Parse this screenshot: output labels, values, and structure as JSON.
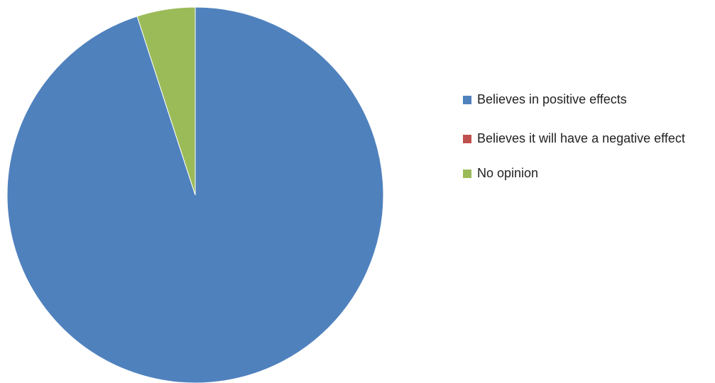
{
  "chart_data": {
    "type": "pie",
    "title": "",
    "slices": [
      {
        "label": "Believes in positive effects",
        "value": 95,
        "color": "#4F81BD"
      },
      {
        "label": "Believes it will have a negative effect",
        "value": 0,
        "color": "#C0504D"
      },
      {
        "label": "No opinion",
        "value": 5,
        "color": "#9BBB59"
      }
    ],
    "start_angle_deg": 0,
    "direction": "clockwise",
    "legend_position": "right"
  }
}
